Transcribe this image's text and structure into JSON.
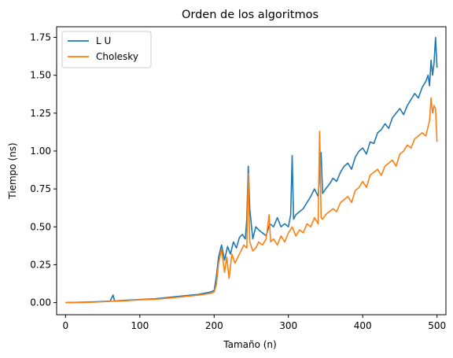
{
  "chart_data": {
    "type": "line",
    "title": "Orden de los algoritmos",
    "xlabel": "Tamaño (n)",
    "ylabel": "Tiempo (ns)",
    "xlim": [
      -12,
      512
    ],
    "ylim": [
      -0.08,
      1.82
    ],
    "x_ticks": [
      0,
      100,
      200,
      300,
      400,
      500
    ],
    "x_tick_labels": [
      "0",
      "100",
      "200",
      "300",
      "400",
      "500"
    ],
    "y_ticks": [
      0.0,
      0.25,
      0.5,
      0.75,
      1.0,
      1.25,
      1.5,
      1.75
    ],
    "y_tick_labels": [
      "0.00",
      "0.25",
      "0.50",
      "0.75",
      "1.00",
      "1.25",
      "1.50",
      "1.75"
    ],
    "grid": false,
    "legend_position": "top-left",
    "series": [
      {
        "name": "L U",
        "color": "#1f77b4",
        "x": [
          0,
          20,
          40,
          60,
          64,
          66,
          70,
          80,
          100,
          120,
          140,
          160,
          180,
          195,
          200,
          203,
          206,
          210,
          214,
          218,
          222,
          226,
          230,
          234,
          238,
          242,
          244,
          246,
          248,
          252,
          256,
          260,
          265,
          270,
          275,
          280,
          285,
          290,
          295,
          300,
          303,
          305,
          307,
          310,
          315,
          320,
          325,
          330,
          335,
          340,
          344,
          346,
          350,
          355,
          360,
          365,
          370,
          375,
          380,
          385,
          390,
          395,
          400,
          405,
          410,
          415,
          420,
          425,
          430,
          435,
          440,
          445,
          450,
          455,
          460,
          465,
          470,
          475,
          480,
          485,
          488,
          490,
          492,
          494,
          496,
          498,
          500
        ],
        "values": [
          0.0,
          0.002,
          0.005,
          0.01,
          0.05,
          0.01,
          0.012,
          0.015,
          0.02,
          0.025,
          0.035,
          0.045,
          0.055,
          0.07,
          0.08,
          0.17,
          0.3,
          0.38,
          0.28,
          0.37,
          0.32,
          0.4,
          0.36,
          0.43,
          0.45,
          0.42,
          0.55,
          0.9,
          0.62,
          0.42,
          0.5,
          0.48,
          0.46,
          0.44,
          0.52,
          0.5,
          0.56,
          0.5,
          0.52,
          0.5,
          0.58,
          0.97,
          0.55,
          0.58,
          0.6,
          0.62,
          0.66,
          0.7,
          0.75,
          0.7,
          0.99,
          0.72,
          0.75,
          0.78,
          0.82,
          0.8,
          0.86,
          0.9,
          0.92,
          0.88,
          0.96,
          1.0,
          1.02,
          0.98,
          1.06,
          1.05,
          1.12,
          1.14,
          1.18,
          1.15,
          1.22,
          1.25,
          1.28,
          1.24,
          1.3,
          1.34,
          1.38,
          1.35,
          1.42,
          1.46,
          1.5,
          1.43,
          1.6,
          1.5,
          1.58,
          1.75,
          1.55
        ]
      },
      {
        "name": "Cholesky",
        "color": "#ff7f0e",
        "x": [
          0,
          20,
          40,
          60,
          70,
          80,
          100,
          120,
          140,
          160,
          180,
          195,
          200,
          203,
          206,
          210,
          214,
          217,
          220,
          224,
          228,
          232,
          236,
          240,
          244,
          246,
          248,
          252,
          256,
          260,
          265,
          270,
          274,
          276,
          280,
          285,
          290,
          295,
          300,
          305,
          310,
          315,
          320,
          325,
          330,
          335,
          340,
          342,
          344,
          346,
          350,
          355,
          360,
          365,
          370,
          375,
          380,
          385,
          390,
          395,
          400,
          405,
          410,
          415,
          420,
          425,
          430,
          435,
          440,
          445,
          450,
          455,
          460,
          465,
          470,
          475,
          480,
          485,
          488,
          490,
          492,
          494,
          496,
          498,
          500
        ],
        "values": [
          0.0,
          0.0,
          0.003,
          0.008,
          0.01,
          0.012,
          0.018,
          0.022,
          0.03,
          0.04,
          0.05,
          0.06,
          0.07,
          0.12,
          0.26,
          0.35,
          0.2,
          0.3,
          0.16,
          0.32,
          0.26,
          0.3,
          0.34,
          0.38,
          0.36,
          0.85,
          0.4,
          0.34,
          0.36,
          0.4,
          0.38,
          0.42,
          0.58,
          0.4,
          0.42,
          0.38,
          0.44,
          0.4,
          0.46,
          0.5,
          0.44,
          0.48,
          0.46,
          0.52,
          0.5,
          0.56,
          0.52,
          1.13,
          0.56,
          0.55,
          0.58,
          0.6,
          0.62,
          0.6,
          0.66,
          0.68,
          0.7,
          0.66,
          0.74,
          0.76,
          0.8,
          0.76,
          0.84,
          0.86,
          0.88,
          0.84,
          0.9,
          0.92,
          0.94,
          0.9,
          0.98,
          1.0,
          1.04,
          1.02,
          1.08,
          1.1,
          1.12,
          1.1,
          1.16,
          1.2,
          1.35,
          1.25,
          1.3,
          1.28,
          1.06
        ]
      }
    ]
  }
}
